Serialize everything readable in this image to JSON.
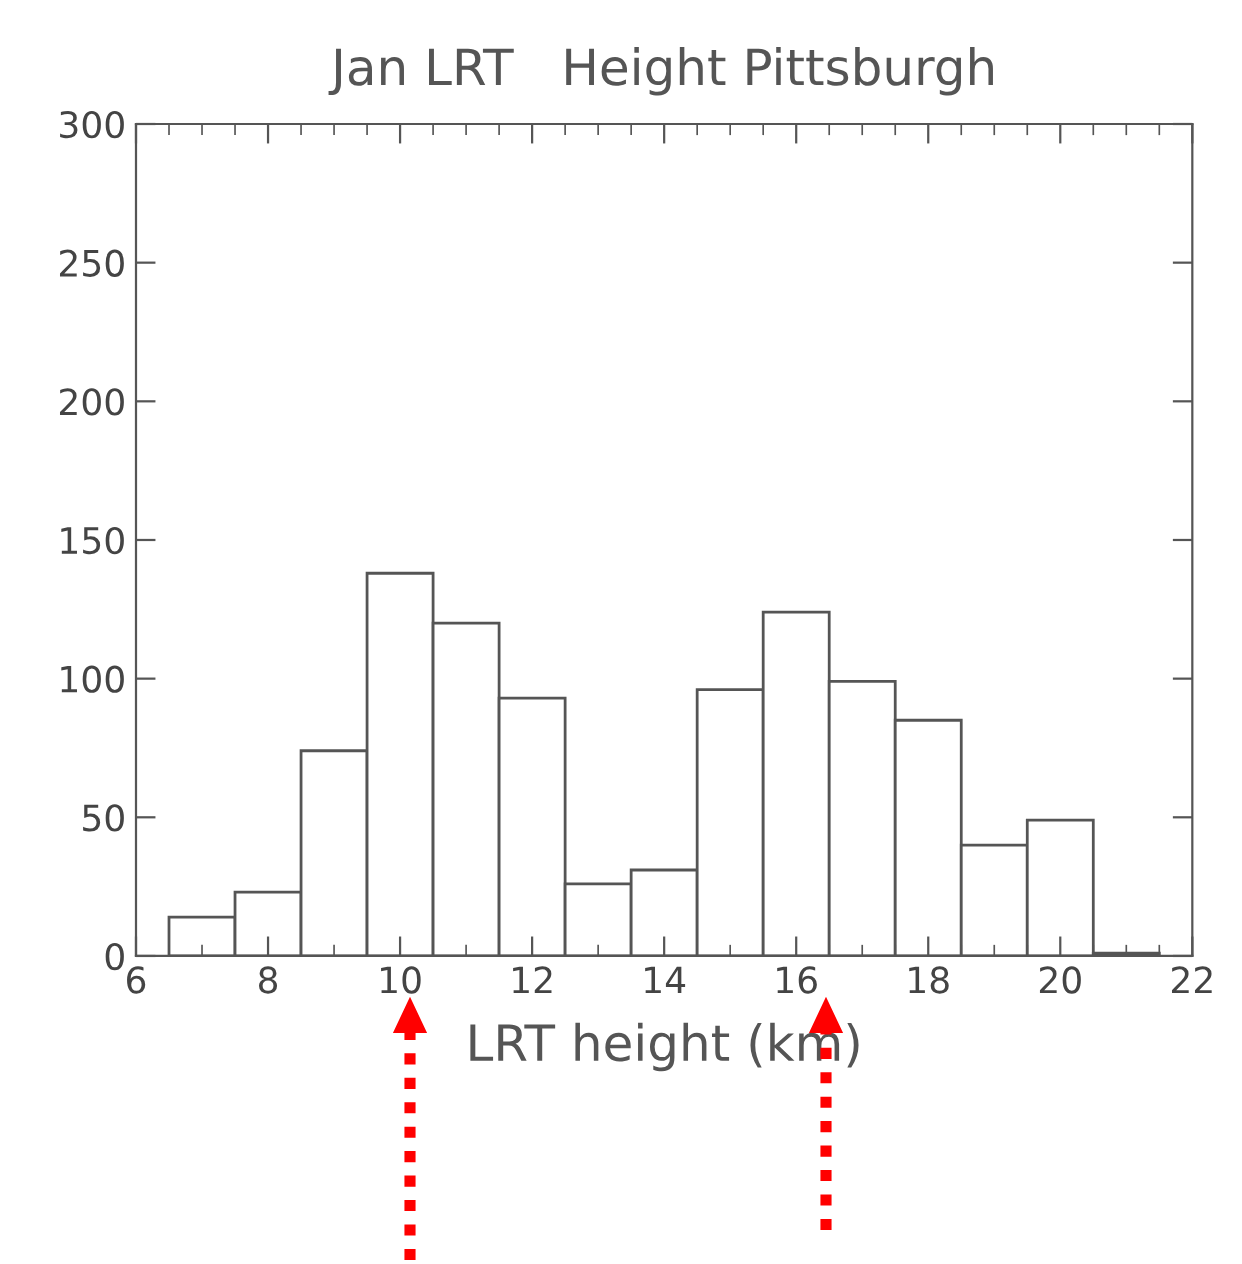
{
  "chart_data": {
    "type": "histogram",
    "title": "Jan LRT   Height Pittsburgh",
    "xlabel": "LRT height (km)",
    "bins": [
      6.5,
      7.5,
      8.5,
      9.5,
      10.5,
      11.5,
      12.5,
      13.5,
      14.5,
      15.5,
      16.5,
      17.5,
      18.5,
      19.5,
      20.5,
      21.5
    ],
    "values": [
      14,
      23,
      74,
      138,
      120,
      93,
      26,
      31,
      96,
      124,
      99,
      85,
      40,
      49,
      1
    ],
    "color": "#ffffff",
    "xlim": [
      6,
      22
    ],
    "xticks": [
      6,
      8,
      10,
      12,
      14,
      16,
      18,
      20,
      22
    ],
    "ylim": [
      0,
      300
    ],
    "yticks": [
      0,
      50,
      100,
      150,
      200,
      250,
      300
    ],
    "grid": false
  }
}
